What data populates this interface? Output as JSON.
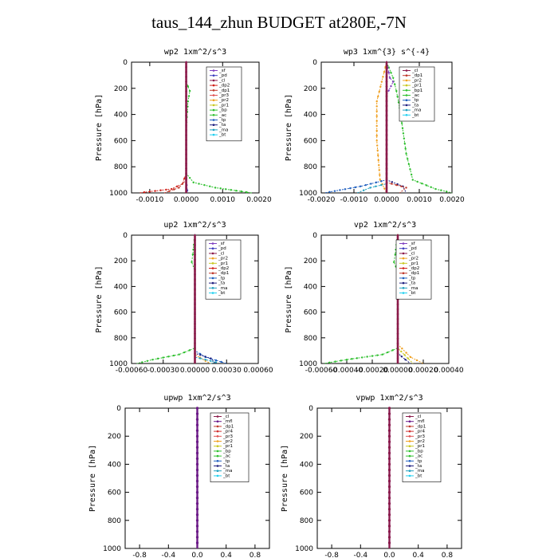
{
  "page": {
    "title": "taus_144_zhun  BUDGET at280E,-7N"
  },
  "colors": {
    "sf": "#7f3fbf",
    "pd": "#3f3fbf",
    "cl": "#8b1a4a",
    "dp2": "#d0201a",
    "dp1": "#c0392b",
    "pr3": "#e05050",
    "pr2": "#f0a020",
    "pr1": "#c8c820",
    "bp": "#30c030",
    "ac": "#30c030",
    "tp": "#1f5fbf",
    "ta": "#202080",
    "ma": "#20a0c0",
    "bt": "#20d0f0",
    "mfl": "#6a1a8a",
    "pr4": "#d03030"
  },
  "chart_data": [
    {
      "type": "line",
      "title": "wp2  1xm^2/s^3",
      "ylabel": "Pressure [hPa]",
      "ylim": [
        0,
        1000
      ],
      "xlim": [
        -0.0015,
        0.002
      ],
      "xticks": [
        "-0.0010",
        "0.0000",
        "0.0010",
        "0.0020"
      ],
      "xtick_values": [
        -0.001,
        0,
        0.001,
        0.002
      ],
      "yticks": [
        "0",
        "200",
        "400",
        "600",
        "800",
        "1000"
      ],
      "legend": [
        "_sf",
        "_pd",
        "_cl",
        "_dp2",
        "_dp1",
        "_pr3",
        "_pr2",
        "_pr1",
        "_bp",
        "_ac",
        "_tp",
        "_ta",
        "_ma",
        "_bt"
      ],
      "series": [
        {
          "name": "_ac",
          "color": "#30c030",
          "points": [
            [
              0,
              0
            ],
            [
              0,
              150
            ],
            [
              0.0001,
              220
            ],
            [
              5e-05,
              300
            ],
            [
              0,
              500
            ],
            [
              0,
              850
            ],
            [
              0.0002,
              920
            ],
            [
              0.0008,
              960
            ],
            [
              0.0018,
              1000
            ]
          ]
        },
        {
          "name": "_dp2",
          "color": "#d0201a",
          "points": [
            [
              0,
              0
            ],
            [
              0,
              850
            ],
            [
              -0.0001,
              930
            ],
            [
              -0.0004,
              970
            ],
            [
              -0.0013,
              1000
            ]
          ]
        },
        {
          "name": "_dp1",
          "color": "#c0392b",
          "points": [
            [
              0,
              0
            ],
            [
              0,
              900
            ],
            [
              -0.0002,
              960
            ],
            [
              -0.0006,
              1000
            ]
          ]
        },
        {
          "name": "_pd",
          "color": "#3f3fbf",
          "points": [
            [
              0,
              0
            ],
            [
              0,
              900
            ],
            [
              3e-05,
              980
            ],
            [
              3e-05,
              1000
            ]
          ]
        },
        {
          "name": "_sf",
          "color": "#7f3fbf",
          "points": [
            [
              0,
              0
            ],
            [
              0,
              1000
            ]
          ]
        },
        {
          "name": "_cl",
          "color": "#8b1a4a",
          "points": [
            [
              0,
              0
            ],
            [
              0,
              1000
            ]
          ]
        }
      ]
    },
    {
      "type": "line",
      "title": "wp3  1xm^{3} s^{-4}",
      "ylabel": "Pressure [hPa]",
      "ylim": [
        0,
        1000
      ],
      "xlim": [
        -0.002,
        0.002
      ],
      "xticks": [
        "-0.0020",
        "-0.0010",
        "0.0000",
        "0.0010",
        "0.0020"
      ],
      "xtick_values": [
        -0.002,
        -0.001,
        0,
        0.001,
        0.002
      ],
      "yticks": [
        "0",
        "200",
        "400",
        "600",
        "800",
        "1000"
      ],
      "legend": [
        "_cl",
        "_dp1",
        "_pr2",
        "_pr1",
        "_bp1",
        "_ac",
        "_tp",
        "_ta",
        "_ma",
        "_bt"
      ],
      "series": [
        {
          "name": "_ac",
          "color": "#30c030",
          "points": [
            [
              0,
              0
            ],
            [
              0.0002,
              120
            ],
            [
              0.0003,
              220
            ],
            [
              0.0004,
              350
            ],
            [
              0.0006,
              700
            ],
            [
              0.0008,
              900
            ],
            [
              0.0015,
              970
            ],
            [
              0.002,
              1000
            ]
          ]
        },
        {
          "name": "_pr2",
          "color": "#f0a020",
          "points": [
            [
              0,
              0
            ],
            [
              -0.0003,
              300
            ],
            [
              -0.0003,
              600
            ],
            [
              -0.0002,
              900
            ],
            [
              0,
              1000
            ]
          ]
        },
        {
          "name": "_tp",
          "color": "#1f5fbf",
          "points": [
            [
              0,
              0
            ],
            [
              0,
              900
            ],
            [
              -0.0008,
              950
            ],
            [
              -0.0019,
              1000
            ]
          ]
        },
        {
          "name": "_ta",
          "color": "#202080",
          "points": [
            [
              0,
              0
            ],
            [
              0,
              900
            ],
            [
              0.0005,
              950
            ],
            [
              0.0006,
              1000
            ]
          ]
        },
        {
          "name": "_dp1",
          "color": "#c0392b",
          "points": [
            [
              0,
              0
            ],
            [
              0,
              920
            ],
            [
              0.0006,
              960
            ],
            [
              0.0004,
              1000
            ]
          ]
        },
        {
          "name": "_ma",
          "color": "#20a0c0",
          "points": [
            [
              0,
              0
            ],
            [
              0,
              930
            ],
            [
              -0.0005,
              960
            ],
            [
              -0.0009,
              1000
            ]
          ]
        },
        {
          "name": "_pr1",
          "color": "#c8c820",
          "points": [
            [
              0,
              0
            ],
            [
              0,
              1000
            ]
          ]
        },
        {
          "name": "_bp1",
          "color": "#7f3fbf",
          "points": [
            [
              0,
              0
            ],
            [
              0.0001,
              120
            ],
            [
              0.0002,
              150
            ],
            [
              0,
              250
            ],
            [
              0,
              1000
            ]
          ]
        },
        {
          "name": "_cl",
          "color": "#8b1a4a",
          "points": [
            [
              0,
              0
            ],
            [
              0,
              1000
            ]
          ]
        }
      ]
    },
    {
      "type": "line",
      "title": "up2  1xm^2/s^3",
      "ylabel": "Pressure [hPa]",
      "ylim": [
        0,
        1000
      ],
      "xlim": [
        -0.0006,
        0.0006
      ],
      "xticks": [
        "-0.00060",
        "-0.00030",
        "0.00000",
        "0.00030",
        "0.00060"
      ],
      "xtick_values": [
        -0.0006,
        -0.0003,
        0,
        0.0003,
        0.0006
      ],
      "yticks": [
        "0",
        "200",
        "400",
        "600",
        "800",
        "1000"
      ],
      "legend": [
        "_sf",
        "_pd",
        "_cl",
        "_pr2",
        "_pr1",
        "_dp2",
        "_dp1",
        "_tp",
        "_ta",
        "_ma",
        "_bt"
      ],
      "series": [
        {
          "name": "_dp2",
          "color": "#30c030",
          "points": [
            [
              0,
              0
            ],
            [
              -2e-05,
              150
            ],
            [
              -3e-05,
              210
            ],
            [
              0,
              280
            ],
            [
              0,
              880
            ],
            [
              -0.00015,
              930
            ],
            [
              -0.0004,
              970
            ],
            [
              -0.00055,
              1000
            ]
          ]
        },
        {
          "name": "_tp",
          "color": "#1f5fbf",
          "points": [
            [
              0,
              0
            ],
            [
              0,
              900
            ],
            [
              0.0001,
              950
            ],
            [
              0.0003,
              1000
            ]
          ]
        },
        {
          "name": "_ta",
          "color": "#202080",
          "points": [
            [
              0,
              0
            ],
            [
              0,
              920
            ],
            [
              0.00015,
              960
            ],
            [
              0.0002,
              1000
            ]
          ]
        },
        {
          "name": "_pr2",
          "color": "#f0a020",
          "points": [
            [
              0,
              0
            ],
            [
              0,
              930
            ],
            [
              0.0001,
              980
            ],
            [
              0.00015,
              1000
            ]
          ]
        },
        {
          "name": "_ma",
          "color": "#20a0c0",
          "points": [
            [
              0,
              0
            ],
            [
              0,
              950
            ],
            [
              0.0002,
              990
            ],
            [
              0.00015,
              1000
            ]
          ]
        },
        {
          "name": "_cl",
          "color": "#8b1a4a",
          "points": [
            [
              0,
              0
            ],
            [
              0,
              1000
            ]
          ]
        }
      ]
    },
    {
      "type": "line",
      "title": "vp2  1xm^2/s^3",
      "ylabel": "Pressure [hPa]",
      "ylim": [
        0,
        1000
      ],
      "xlim": [
        -0.0006,
        0.0004
      ],
      "xticks": [
        "-0.00060",
        "-0.00040",
        "-0.00020",
        "0.00000",
        "0.00020",
        "0.00040"
      ],
      "xtick_values": [
        -0.0006,
        -0.0004,
        -0.0002,
        0,
        0.0002,
        0.0004
      ],
      "yticks": [
        "0",
        "200",
        "400",
        "600",
        "800",
        "1000"
      ],
      "legend": [
        "_sf",
        "_pd",
        "_cl",
        "_pr2",
        "_pr1",
        "_dp2",
        "_dp1",
        "_tp",
        "_ta",
        "_ma",
        "_bt"
      ],
      "series": [
        {
          "name": "_dp2",
          "color": "#30c030",
          "points": [
            [
              0,
              0
            ],
            [
              -2e-05,
              150
            ],
            [
              -3e-05,
              210
            ],
            [
              0,
              280
            ],
            [
              0,
              880
            ],
            [
              -0.00012,
              930
            ],
            [
              -0.0004,
              970
            ],
            [
              -0.00058,
              1000
            ]
          ]
        },
        {
          "name": "_pr2",
          "color": "#f0a020",
          "points": [
            [
              0,
              0
            ],
            [
              0,
              850
            ],
            [
              0.0001,
              950
            ],
            [
              0.0002,
              1000
            ]
          ]
        },
        {
          "name": "_pr1",
          "color": "#c8c820",
          "points": [
            [
              0,
              0
            ],
            [
              0,
              880
            ],
            [
              8e-05,
              960
            ],
            [
              0.00012,
              1000
            ]
          ]
        },
        {
          "name": "_ta",
          "color": "#202080",
          "points": [
            [
              0,
              0
            ],
            [
              0,
              920
            ],
            [
              6e-05,
              970
            ],
            [
              0.0001,
              1000
            ]
          ]
        },
        {
          "name": "_cl",
          "color": "#8b1a4a",
          "points": [
            [
              0,
              0
            ],
            [
              0,
              1000
            ]
          ]
        }
      ]
    },
    {
      "type": "line",
      "title": "upwp  1xm^2/s^3",
      "ylabel": "Pressure [hPa]",
      "ylim": [
        0,
        1000
      ],
      "xlim": [
        -1,
        1
      ],
      "xticks": [
        "-0.8",
        "-0.4",
        "0.0",
        "0.4",
        "0.8"
      ],
      "xtick_values": [
        -0.8,
        -0.4,
        0,
        0.4,
        0.8
      ],
      "yticks": [
        "0",
        "200",
        "400",
        "600",
        "800",
        "1000"
      ],
      "legend": [
        "_cl",
        "_mfl",
        "_dp1",
        "_pr4",
        "_pr3",
        "_pr2",
        "_pr1",
        "_bp",
        "_ac",
        "_tp",
        "_ta",
        "_ma",
        "_bt"
      ],
      "series": [
        {
          "name": "_cl",
          "color": "#8b1a4a",
          "points": [
            [
              0,
              0
            ],
            [
              0,
              1000
            ]
          ]
        },
        {
          "name": "_mfl",
          "color": "#6a1a8a",
          "points": [
            [
              0,
              0
            ],
            [
              0,
              1000
            ]
          ]
        }
      ]
    },
    {
      "type": "line",
      "title": "vpwp  1xm^2/s^3",
      "ylabel": "Pressure [hPa]",
      "ylim": [
        0,
        1000
      ],
      "xlim": [
        -1,
        1
      ],
      "xticks": [
        "-0.8",
        "-0.4",
        "0.0",
        "0.4",
        "0.8"
      ],
      "xtick_values": [
        -0.8,
        -0.4,
        0,
        0.4,
        0.8
      ],
      "yticks": [
        "0",
        "200",
        "400",
        "600",
        "800",
        "1000"
      ],
      "legend": [
        "_cl",
        "_mfl",
        "_dp1",
        "_pr4",
        "_pr3",
        "_pr2",
        "_pr1",
        "_bp",
        "_ac",
        "_tp",
        "_ta",
        "_ma",
        "_bt"
      ],
      "series": [
        {
          "name": "_cl",
          "color": "#6a1a8a",
          "points": [
            [
              0,
              0
            ],
            [
              0,
              1000
            ]
          ]
        },
        {
          "name": "_mfl",
          "color": "#8b1a4a",
          "points": [
            [
              0,
              0
            ],
            [
              0,
              1000
            ]
          ]
        }
      ]
    }
  ]
}
